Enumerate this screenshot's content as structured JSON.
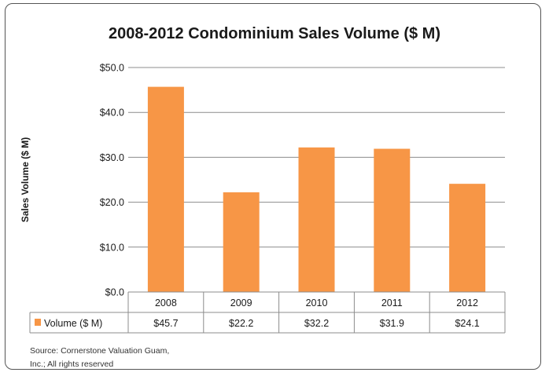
{
  "chart_data": {
    "type": "bar",
    "title": "2008-2012 Condominium Sales Volume ($ M)",
    "xlabel": "",
    "ylabel": "Sales Volume ($ M)",
    "categories": [
      "2008",
      "2009",
      "2010",
      "2011",
      "2012"
    ],
    "series": [
      {
        "name": "Volume ($ M)",
        "values": [
          45.7,
          22.2,
          32.2,
          31.9,
          24.1
        ],
        "color": "#f79646"
      }
    ],
    "data_table": [
      "$45.7",
      "$22.2",
      "$32.2",
      "$31.9",
      "$24.1"
    ],
    "ylim": [
      0,
      50
    ],
    "yticks": [
      0,
      10,
      20,
      30,
      40,
      50
    ],
    "ytick_labels": [
      "$0.0",
      "$10.0",
      "$20.0",
      "$30.0",
      "$40.0",
      "$50.0"
    ],
    "grid": true,
    "legend": "data-table"
  },
  "source_note": {
    "line1": "Source: Cornerstone Valuation Guam,",
    "line2": "Inc.; All rights reserved"
  }
}
